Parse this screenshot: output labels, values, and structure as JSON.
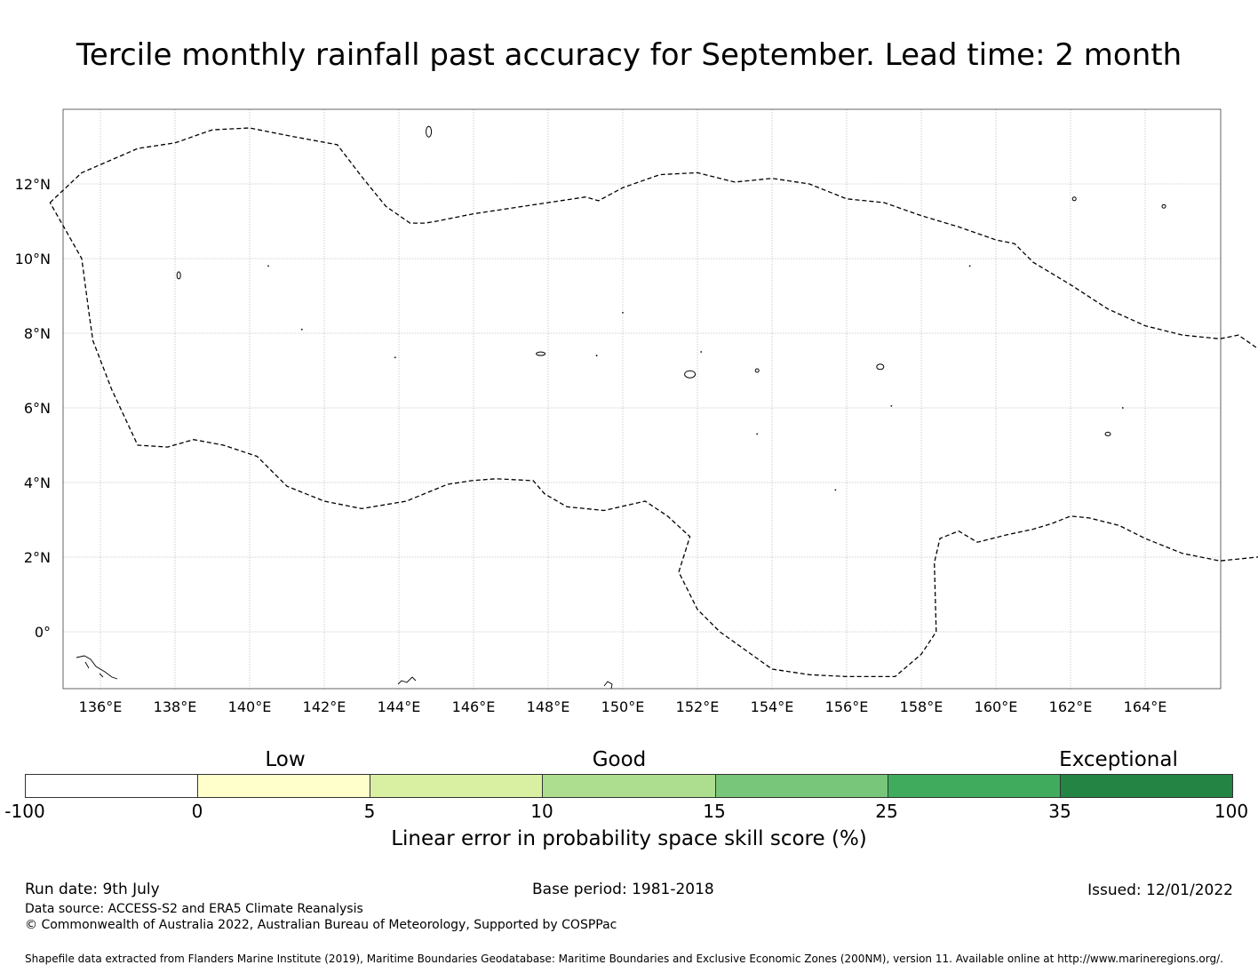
{
  "title": "Tercile monthly rainfall past accuracy for September. Lead time: 2 month",
  "map": {
    "lon_labels": [
      "136°E",
      "138°E",
      "140°E",
      "142°E",
      "144°E",
      "146°E",
      "148°E",
      "150°E",
      "152°E",
      "154°E",
      "156°E",
      "158°E",
      "160°E",
      "162°E",
      "164°E"
    ],
    "lat_labels": [
      "12°N",
      "10°N",
      "8°N",
      "6°N",
      "4°N",
      "2°N",
      "0°"
    ]
  },
  "colorbar": {
    "categories": [
      "Low",
      "Good",
      "Exceptional"
    ],
    "ticks": [
      "-100",
      "0",
      "5",
      "10",
      "15",
      "25",
      "35",
      "100"
    ],
    "colors": [
      "#ffffff",
      "#ffffcc",
      "#d9f0a3",
      "#addd8e",
      "#78c679",
      "#41ab5d",
      "#238443"
    ],
    "label": "Linear error in probability space skill score (%)"
  },
  "footer": {
    "run_date": "Run date: 9th July",
    "base_period": "Base period: 1981-2018",
    "issued": "Issued: 12/01/2022",
    "data_source": "Data source: ACCESS-S2 and ERA5 Climate Reanalysis",
    "copyright": "© Commonwealth of Australia 2022, Australian Bureau of Meteorology, Supported by COSPPac",
    "shapefile": "Shapefile data extracted from Flanders Marine Institute (2019), Maritime Boundaries Geodatabase: Maritime Boundaries and Exclusive Economic Zones (200NM), version 11. Available online at http://www.marineregions.org/."
  }
}
